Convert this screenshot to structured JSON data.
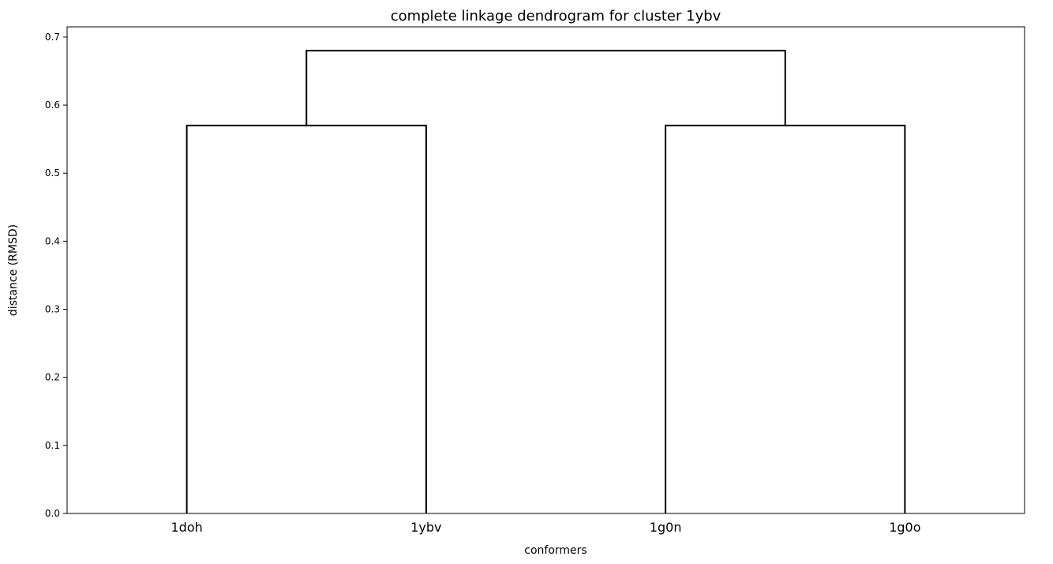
{
  "chart_data": {
    "type": "dendrogram",
    "title": "complete linkage dendrogram for cluster 1ybv",
    "xlabel": "conformers",
    "ylabel": "distance (RMSD)",
    "leaves": [
      "1doh",
      "1ybv",
      "1g0n",
      "1g0o"
    ],
    "ylim": [
      0,
      0.715
    ],
    "yticks": [
      0.0,
      0.1,
      0.2,
      0.3,
      0.4,
      0.5,
      0.6,
      0.7
    ],
    "ytick_labels": [
      "0.0",
      "0.1",
      "0.2",
      "0.3",
      "0.4",
      "0.5",
      "0.6",
      "0.7"
    ],
    "merges": [
      {
        "left": "1doh",
        "right": "1ybv",
        "distance": 0.57
      },
      {
        "left": "1g0n",
        "right": "1g0o",
        "distance": 0.57
      },
      {
        "left": "1doh+1ybv",
        "right": "1g0n+1g0o",
        "distance": 0.68
      }
    ],
    "link_color": "#000000",
    "grid": false
  }
}
